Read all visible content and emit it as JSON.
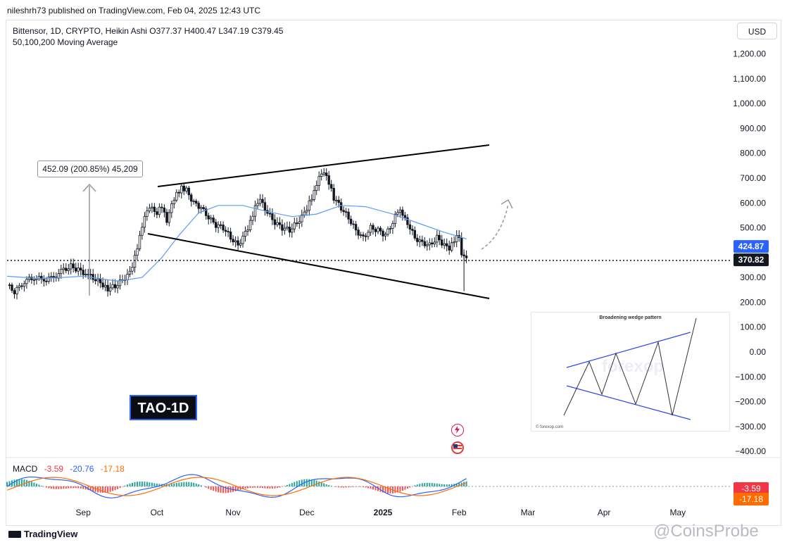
{
  "header": {
    "published_by": "nileshrh73 published on TradingView.com, Feb 04, 2025 12:43 UTC"
  },
  "legend": {
    "symbol_line": "Bittensor, 1D, CRYPTO, Heikin Ashi  O377.37  H400.47  L347.19  C379.45",
    "indicator_line": "50,100,200 Moving Average"
  },
  "currency_button": "USD",
  "annotations": {
    "tao_label": "TAO-1D",
    "measure_label": "452.09 (200.85%) 45,209"
  },
  "inset": {
    "title": "Broadening wedge pattern",
    "credit": "© forexop.com",
    "watermark": "forexop"
  },
  "branding": {
    "tradingview": "TradingView",
    "watermark": "@CoinsProbe"
  },
  "colors": {
    "up": "#089981",
    "down": "#f23645",
    "ma": "#5b9cf6",
    "macd_line": "#2962ff",
    "signal_line": "#ff6d00",
    "trendline": "#000000"
  },
  "chart_data": [
    {
      "type": "candlestick",
      "subtitle": "Heikin Ashi",
      "y_axis_labels": [
        "1,200.00",
        "1,100.00",
        "1,000.00",
        "900.00",
        "800.00",
        "700.00",
        "600.00",
        "500.00",
        "300.00",
        "200.00",
        "100.00",
        "0.00",
        "−100.00",
        "−200.00",
        "−300.00",
        "−400.00"
      ],
      "x_axis_labels": [
        "Sep",
        "Oct",
        "Nov",
        "Dec",
        "2025",
        "Feb",
        "Mar",
        "Apr",
        "May"
      ],
      "price_tags": [
        {
          "label": "424.87",
          "value": 424.87,
          "color": "#2962ff"
        },
        {
          "label": "370.82",
          "value": 370.82,
          "color": "#131722"
        }
      ],
      "current_price_line": 370.82,
      "ohlc_last": {
        "open": 377.37,
        "high": 400.47,
        "low": 347.19,
        "close": 379.45
      },
      "moving_averages": [
        50,
        100,
        200
      ],
      "close_series": [
        [
          "2024-08-01",
          270
        ],
        [
          "2024-08-04",
          240
        ],
        [
          "2024-08-08",
          285
        ],
        [
          "2024-08-12",
          300
        ],
        [
          "2024-08-16",
          290
        ],
        [
          "2024-08-20",
          300
        ],
        [
          "2024-08-24",
          330
        ],
        [
          "2024-08-27",
          345
        ],
        [
          "2024-08-30",
          330
        ],
        [
          "2024-09-03",
          310
        ],
        [
          "2024-09-06",
          290
        ],
        [
          "2024-09-09",
          270
        ],
        [
          "2024-09-11",
          255
        ],
        [
          "2024-09-14",
          265
        ],
        [
          "2024-09-17",
          290
        ],
        [
          "2024-09-20",
          320
        ],
        [
          "2024-09-22",
          380
        ],
        [
          "2024-09-24",
          460
        ],
        [
          "2024-09-26",
          540
        ],
        [
          "2024-09-28",
          580
        ],
        [
          "2024-10-01",
          560
        ],
        [
          "2024-10-03",
          590
        ],
        [
          "2024-10-05",
          530
        ],
        [
          "2024-10-07",
          600
        ],
        [
          "2024-10-09",
          640
        ],
        [
          "2024-10-11",
          660
        ],
        [
          "2024-10-13",
          650
        ],
        [
          "2024-10-16",
          600
        ],
        [
          "2024-10-19",
          580
        ],
        [
          "2024-10-22",
          540
        ],
        [
          "2024-10-25",
          510
        ],
        [
          "2024-10-28",
          500
        ],
        [
          "2024-10-31",
          460
        ],
        [
          "2024-11-03",
          430
        ],
        [
          "2024-11-06",
          480
        ],
        [
          "2024-11-08",
          520
        ],
        [
          "2024-11-10",
          580
        ],
        [
          "2024-11-12",
          610
        ],
        [
          "2024-11-15",
          560
        ],
        [
          "2024-11-18",
          520
        ],
        [
          "2024-11-21",
          500
        ],
        [
          "2024-11-24",
          490
        ],
        [
          "2024-11-27",
          520
        ],
        [
          "2024-11-30",
          560
        ],
        [
          "2024-12-02",
          600
        ],
        [
          "2024-12-04",
          640
        ],
        [
          "2024-12-06",
          700
        ],
        [
          "2024-12-08",
          720
        ],
        [
          "2024-12-10",
          680
        ],
        [
          "2024-12-12",
          620
        ],
        [
          "2024-12-15",
          580
        ],
        [
          "2024-12-18",
          540
        ],
        [
          "2024-12-21",
          490
        ],
        [
          "2024-12-24",
          460
        ],
        [
          "2024-12-27",
          500
        ],
        [
          "2024-12-30",
          490
        ],
        [
          "2025-01-02",
          470
        ],
        [
          "2025-01-05",
          520
        ],
        [
          "2025-01-07",
          570
        ],
        [
          "2025-01-09",
          560
        ],
        [
          "2025-01-11",
          520
        ],
        [
          "2025-01-14",
          460
        ],
        [
          "2025-01-17",
          440
        ],
        [
          "2025-01-20",
          430
        ],
        [
          "2025-01-23",
          460
        ],
        [
          "2025-01-26",
          430
        ],
        [
          "2025-01-28",
          410
        ],
        [
          "2025-01-30",
          450
        ],
        [
          "2025-02-01",
          470
        ],
        [
          "2025-02-02",
          400
        ],
        [
          "2025-02-04",
          379
        ]
      ],
      "ma_series": [
        [
          "2024-08-01",
          305
        ],
        [
          "2024-08-15",
          295
        ],
        [
          "2024-09-01",
          305
        ],
        [
          "2024-09-15",
          285
        ],
        [
          "2024-09-25",
          300
        ],
        [
          "2024-10-03",
          380
        ],
        [
          "2024-10-10",
          470
        ],
        [
          "2024-10-18",
          560
        ],
        [
          "2024-10-26",
          590
        ],
        [
          "2024-11-05",
          590
        ],
        [
          "2024-11-15",
          565
        ],
        [
          "2024-11-25",
          545
        ],
        [
          "2024-12-05",
          555
        ],
        [
          "2024-12-15",
          590
        ],
        [
          "2024-12-25",
          585
        ],
        [
          "2025-01-05",
          555
        ],
        [
          "2025-01-15",
          520
        ],
        [
          "2025-01-25",
          485
        ],
        [
          "2025-02-04",
          455
        ]
      ]
    },
    {
      "type": "macd",
      "label": "MACD",
      "values": {
        "histogram": -3.59,
        "macd": -20.76,
        "signal": -17.18
      },
      "y_tags": [
        {
          "label": "-3.59",
          "color": "#f23645"
        },
        {
          "label": "-17.18",
          "color": "#ff6d00"
        }
      ]
    }
  ]
}
